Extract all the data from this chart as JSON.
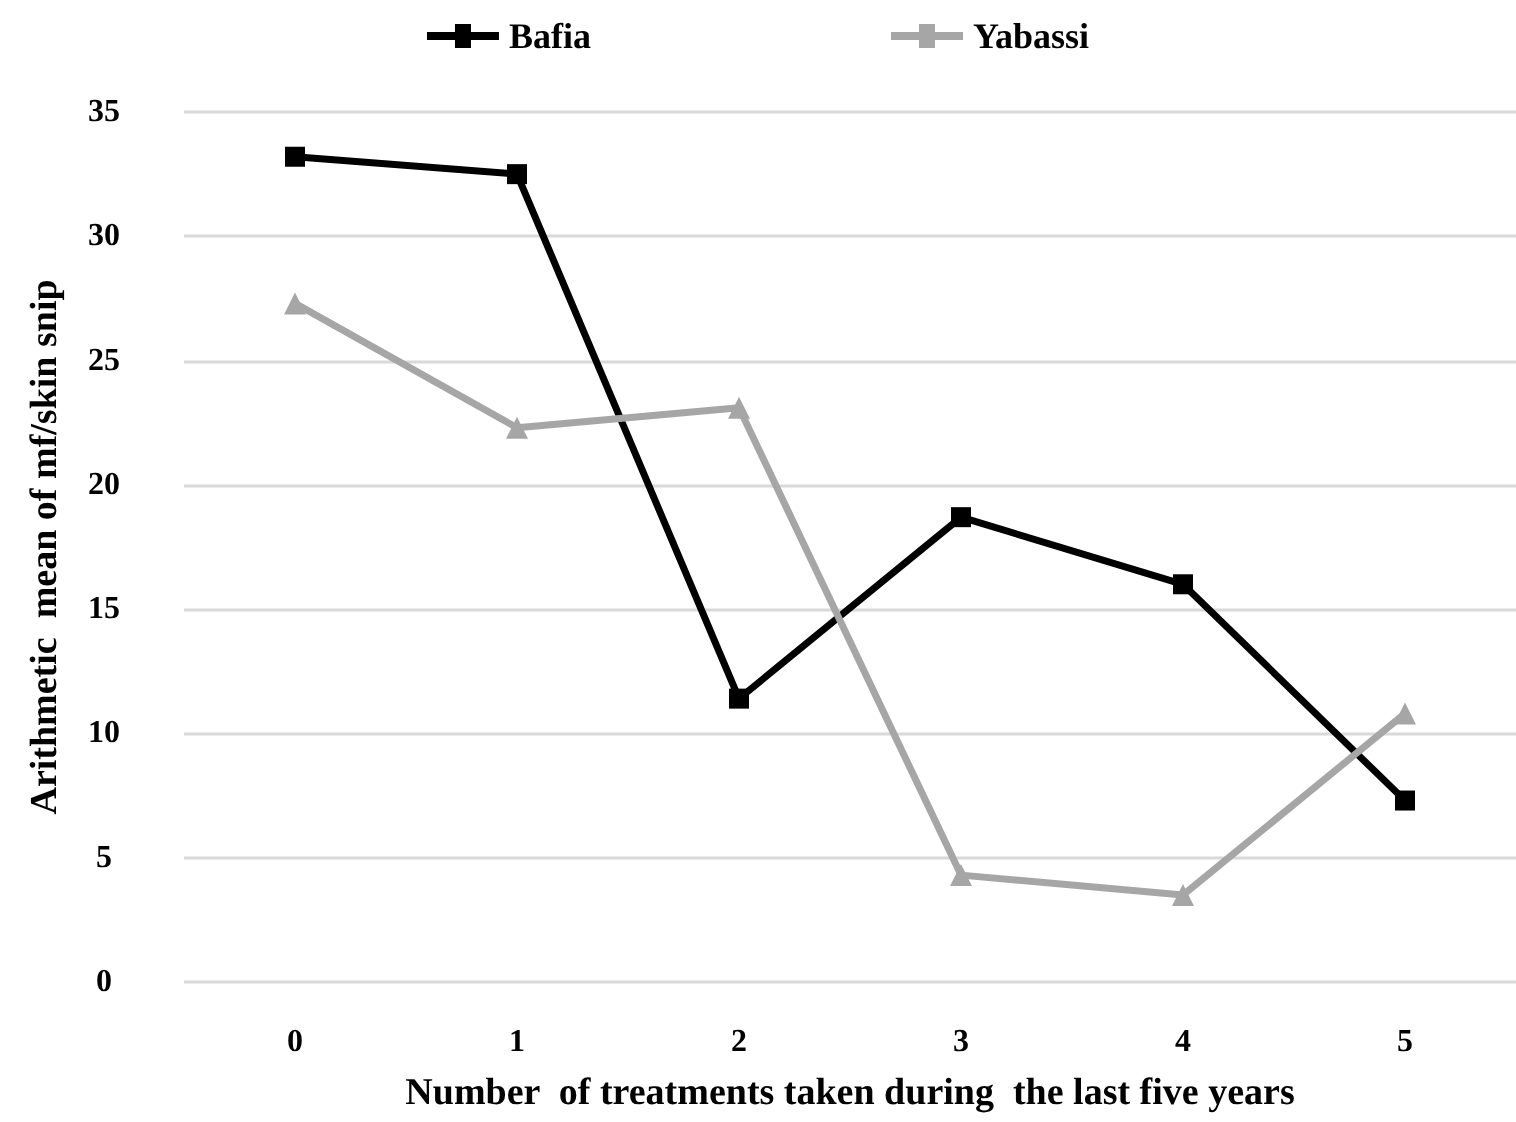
{
  "chart_data": {
    "type": "line",
    "xlabel": "Number  of treatments taken during  the last five years",
    "ylabel": "Arithmetic  mean of mf/skin snip",
    "categories": [
      "0",
      "1",
      "2",
      "3",
      "4",
      "5"
    ],
    "series": [
      {
        "name": "Bafia",
        "color": "#000000",
        "marker": "square",
        "values": [
          33.2,
          32.5,
          11.4,
          18.7,
          16.0,
          7.3
        ]
      },
      {
        "name": "Yabassi",
        "color": "#a6a6a6",
        "marker": "triangle",
        "values": [
          27.3,
          22.3,
          23.1,
          4.3,
          3.5,
          10.8
        ]
      }
    ],
    "ylim": [
      0,
      35
    ],
    "yticks": [
      0,
      5,
      10,
      15,
      20,
      25,
      30,
      35
    ],
    "grid": "y",
    "legend": "top",
    "line_style": "solid"
  }
}
